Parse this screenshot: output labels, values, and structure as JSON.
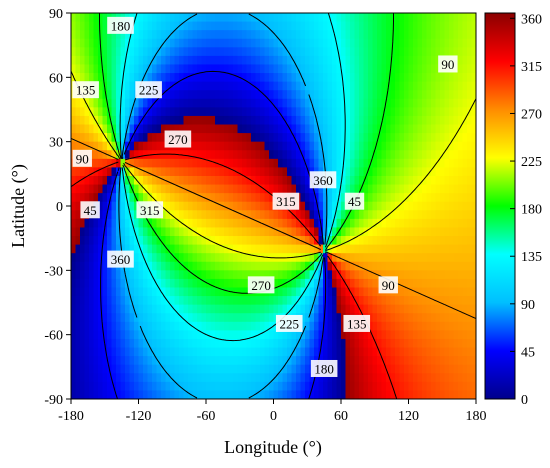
{
  "chart_data": {
    "type": "heatmap",
    "title": "",
    "xlabel": "Longitude (°)",
    "ylabel": "Latitude (°)",
    "xlim": [
      -180,
      180
    ],
    "ylim": [
      -90,
      90
    ],
    "x_ticks": [
      "-180",
      "-120",
      "-60",
      "0",
      "60",
      "120",
      "180"
    ],
    "y_ticks": [
      "90",
      "60",
      "30",
      "0",
      "-30",
      "-60",
      "-90"
    ],
    "colorbar": {
      "range": [
        0,
        365
      ],
      "ticks": [
        "360",
        "315",
        "270",
        "225",
        "180",
        "135",
        "90",
        "45",
        "0"
      ],
      "colormap": [
        "#00008b",
        "#0000ff",
        "#00bfff",
        "#00ffff",
        "#00ff00",
        "#ffff00",
        "#ff8c00",
        "#ff0000",
        "#8b0000"
      ]
    },
    "singular_points": [
      {
        "longitude": -135,
        "latitude": 21
      },
      {
        "longitude": 45,
        "latitude": -21
      }
    ],
    "contour_levels": [
      45,
      90,
      135,
      180,
      225,
      270,
      315,
      360
    ],
    "contour_labels": [
      {
        "text": "180",
        "longitude": -136,
        "latitude": 84
      },
      {
        "text": "135",
        "longitude": -167,
        "latitude": 54
      },
      {
        "text": "225",
        "longitude": -111,
        "latitude": 54
      },
      {
        "text": "90",
        "longitude": -170,
        "latitude": 22
      },
      {
        "text": "270",
        "longitude": -85,
        "latitude": 31
      },
      {
        "text": "45",
        "longitude": -163,
        "latitude": -2
      },
      {
        "text": "315",
        "longitude": -110,
        "latitude": -2
      },
      {
        "text": "360",
        "longitude": -136,
        "latitude": -25
      },
      {
        "text": "90",
        "longitude": 155,
        "latitude": 66
      },
      {
        "text": "360",
        "longitude": 44,
        "latitude": 12
      },
      {
        "text": "315",
        "longitude": 11,
        "latitude": 2
      },
      {
        "text": "45",
        "longitude": 72,
        "latitude": 2
      },
      {
        "text": "270",
        "longitude": -11,
        "latitude": -37
      },
      {
        "text": "90",
        "longitude": 102,
        "latitude": -37
      },
      {
        "text": "225",
        "longitude": 14,
        "latitude": -55
      },
      {
        "text": "135",
        "longitude": 74,
        "latitude": -55
      },
      {
        "text": "180",
        "longitude": 45,
        "latitude": -76
      }
    ]
  }
}
